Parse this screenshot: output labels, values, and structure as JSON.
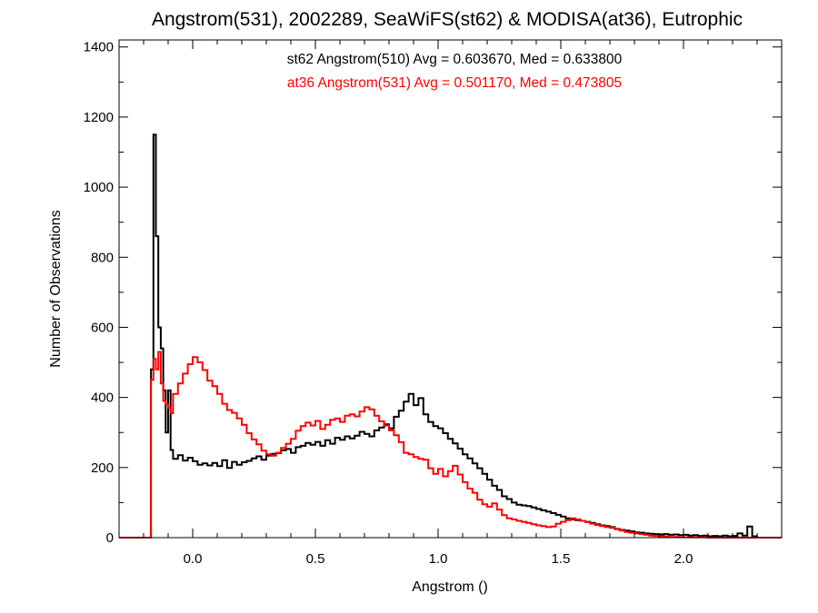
{
  "chart_data": {
    "type": "line",
    "title": "Angstrom(531), 2002289, SeaWiFS(st62) & MODISA(at36), Eutrophic",
    "xlabel": "Angstrom ()",
    "ylabel": "Number of Observations",
    "xlim": [
      -0.3,
      2.4
    ],
    "ylim": [
      0,
      1420
    ],
    "x_ticks": [
      0.0,
      0.5,
      1.0,
      1.5,
      2.0
    ],
    "x_tick_labels": [
      "0.0",
      "0.5",
      "1.0",
      "1.5",
      "2.0"
    ],
    "y_ticks": [
      0,
      200,
      400,
      600,
      800,
      1000,
      1200,
      1400
    ],
    "y_tick_labels": [
      "0",
      "200",
      "400",
      "600",
      "800",
      "1000",
      "1200",
      "1400"
    ],
    "grid": false,
    "series": [
      {
        "name": "st62 Angstrom(510)",
        "color": "#000000",
        "stats_text": "st62 Angstrom(510) Avg = 0.603670, Med = 0.633800",
        "points": [
          [
            -0.3,
            0
          ],
          [
            -0.18,
            0
          ],
          [
            -0.17,
            480
          ],
          [
            -0.16,
            1150
          ],
          [
            -0.15,
            860
          ],
          [
            -0.14,
            600
          ],
          [
            -0.13,
            540
          ],
          [
            -0.12,
            420
          ],
          [
            -0.11,
            300
          ],
          [
            -0.1,
            420
          ],
          [
            -0.09,
            250
          ],
          [
            -0.08,
            225
          ],
          [
            -0.06,
            235
          ],
          [
            -0.04,
            220
          ],
          [
            -0.02,
            228
          ],
          [
            0.0,
            218
          ],
          [
            0.02,
            208
          ],
          [
            0.04,
            212
          ],
          [
            0.06,
            206
          ],
          [
            0.08,
            213
          ],
          [
            0.1,
            204
          ],
          [
            0.12,
            221
          ],
          [
            0.14,
            199
          ],
          [
            0.16,
            216
          ],
          [
            0.18,
            208
          ],
          [
            0.2,
            215
          ],
          [
            0.22,
            219
          ],
          [
            0.24,
            226
          ],
          [
            0.26,
            232
          ],
          [
            0.28,
            222
          ],
          [
            0.3,
            234
          ],
          [
            0.32,
            239
          ],
          [
            0.34,
            241
          ],
          [
            0.36,
            249
          ],
          [
            0.38,
            253
          ],
          [
            0.4,
            242
          ],
          [
            0.42,
            258
          ],
          [
            0.44,
            262
          ],
          [
            0.46,
            270
          ],
          [
            0.48,
            265
          ],
          [
            0.5,
            273
          ],
          [
            0.52,
            262
          ],
          [
            0.54,
            278
          ],
          [
            0.56,
            268
          ],
          [
            0.58,
            285
          ],
          [
            0.6,
            279
          ],
          [
            0.62,
            289
          ],
          [
            0.64,
            283
          ],
          [
            0.66,
            291
          ],
          [
            0.68,
            302
          ],
          [
            0.7,
            296
          ],
          [
            0.72,
            289
          ],
          [
            0.74,
            306
          ],
          [
            0.76,
            314
          ],
          [
            0.78,
            323
          ],
          [
            0.8,
            312
          ],
          [
            0.82,
            345
          ],
          [
            0.84,
            362
          ],
          [
            0.86,
            388
          ],
          [
            0.88,
            410
          ],
          [
            0.9,
            378
          ],
          [
            0.92,
            398
          ],
          [
            0.94,
            352
          ],
          [
            0.96,
            330
          ],
          [
            0.98,
            318
          ],
          [
            1.0,
            312
          ],
          [
            1.02,
            298
          ],
          [
            1.04,
            282
          ],
          [
            1.06,
            269
          ],
          [
            1.08,
            254
          ],
          [
            1.1,
            238
          ],
          [
            1.12,
            226
          ],
          [
            1.14,
            212
          ],
          [
            1.16,
            198
          ],
          [
            1.18,
            182
          ],
          [
            1.2,
            165
          ],
          [
            1.22,
            148
          ],
          [
            1.24,
            136
          ],
          [
            1.26,
            118
          ],
          [
            1.28,
            110
          ],
          [
            1.3,
            100
          ],
          [
            1.32,
            94
          ],
          [
            1.34,
            92
          ],
          [
            1.36,
            90
          ],
          [
            1.38,
            86
          ],
          [
            1.4,
            82
          ],
          [
            1.42,
            78
          ],
          [
            1.44,
            74
          ],
          [
            1.46,
            70
          ],
          [
            1.48,
            65
          ],
          [
            1.5,
            60
          ],
          [
            1.52,
            55
          ],
          [
            1.54,
            52
          ],
          [
            1.56,
            50
          ],
          [
            1.58,
            48
          ],
          [
            1.6,
            45
          ],
          [
            1.62,
            42
          ],
          [
            1.64,
            38
          ],
          [
            1.66,
            35
          ],
          [
            1.68,
            33
          ],
          [
            1.7,
            30
          ],
          [
            1.72,
            25
          ],
          [
            1.74,
            22
          ],
          [
            1.76,
            20
          ],
          [
            1.78,
            18
          ],
          [
            1.8,
            15
          ],
          [
            1.82,
            14
          ],
          [
            1.84,
            12
          ],
          [
            1.86,
            11
          ],
          [
            1.88,
            10
          ],
          [
            1.9,
            9
          ],
          [
            1.92,
            10
          ],
          [
            1.94,
            8
          ],
          [
            1.96,
            9
          ],
          [
            1.98,
            7
          ],
          [
            2.0,
            8
          ],
          [
            2.02,
            6
          ],
          [
            2.04,
            7
          ],
          [
            2.06,
            5
          ],
          [
            2.08,
            6
          ],
          [
            2.1,
            4
          ],
          [
            2.12,
            5
          ],
          [
            2.14,
            4
          ],
          [
            2.16,
            6
          ],
          [
            2.18,
            4
          ],
          [
            2.2,
            5
          ],
          [
            2.22,
            12
          ],
          [
            2.24,
            6
          ],
          [
            2.26,
            32
          ],
          [
            2.28,
            4
          ],
          [
            2.3,
            0
          ],
          [
            2.4,
            0
          ]
        ]
      },
      {
        "name": "at36 Angstrom(531)",
        "color": "#ff0000",
        "stats_text": "at36 Angstrom(531) Avg = 0.501170, Med = 0.473805",
        "points": [
          [
            -0.3,
            0
          ],
          [
            -0.18,
            0
          ],
          [
            -0.17,
            450
          ],
          [
            -0.16,
            510
          ],
          [
            -0.15,
            480
          ],
          [
            -0.14,
            530
          ],
          [
            -0.13,
            440
          ],
          [
            -0.12,
            390
          ],
          [
            -0.11,
            380
          ],
          [
            -0.1,
            370
          ],
          [
            -0.09,
            355
          ],
          [
            -0.08,
            410
          ],
          [
            -0.06,
            440
          ],
          [
            -0.04,
            468
          ],
          [
            -0.02,
            495
          ],
          [
            0.0,
            515
          ],
          [
            0.02,
            500
          ],
          [
            0.04,
            478
          ],
          [
            0.06,
            448
          ],
          [
            0.08,
            432
          ],
          [
            0.1,
            410
          ],
          [
            0.12,
            382
          ],
          [
            0.14,
            364
          ],
          [
            0.16,
            356
          ],
          [
            0.18,
            340
          ],
          [
            0.2,
            322
          ],
          [
            0.22,
            298
          ],
          [
            0.24,
            280
          ],
          [
            0.26,
            266
          ],
          [
            0.28,
            248
          ],
          [
            0.3,
            238
          ],
          [
            0.32,
            234
          ],
          [
            0.34,
            242
          ],
          [
            0.36,
            256
          ],
          [
            0.38,
            268
          ],
          [
            0.4,
            282
          ],
          [
            0.42,
            305
          ],
          [
            0.44,
            318
          ],
          [
            0.46,
            328
          ],
          [
            0.48,
            320
          ],
          [
            0.5,
            333
          ],
          [
            0.52,
            310
          ],
          [
            0.54,
            322
          ],
          [
            0.56,
            336
          ],
          [
            0.58,
            340
          ],
          [
            0.6,
            330
          ],
          [
            0.62,
            348
          ],
          [
            0.64,
            352
          ],
          [
            0.66,
            346
          ],
          [
            0.68,
            360
          ],
          [
            0.7,
            372
          ],
          [
            0.72,
            366
          ],
          [
            0.74,
            348
          ],
          [
            0.76,
            332
          ],
          [
            0.78,
            320
          ],
          [
            0.8,
            306
          ],
          [
            0.82,
            292
          ],
          [
            0.84,
            272
          ],
          [
            0.86,
            242
          ],
          [
            0.88,
            238
          ],
          [
            0.9,
            230
          ],
          [
            0.92,
            225
          ],
          [
            0.94,
            222
          ],
          [
            0.96,
            198
          ],
          [
            0.98,
            182
          ],
          [
            1.0,
            196
          ],
          [
            1.02,
            175
          ],
          [
            1.04,
            190
          ],
          [
            1.06,
            205
          ],
          [
            1.08,
            180
          ],
          [
            1.1,
            158
          ],
          [
            1.12,
            140
          ],
          [
            1.14,
            128
          ],
          [
            1.16,
            108
          ],
          [
            1.18,
            95
          ],
          [
            1.2,
            88
          ],
          [
            1.22,
            98
          ],
          [
            1.24,
            80
          ],
          [
            1.26,
            64
          ],
          [
            1.28,
            55
          ],
          [
            1.3,
            52
          ],
          [
            1.32,
            48
          ],
          [
            1.34,
            45
          ],
          [
            1.36,
            42
          ],
          [
            1.38,
            38
          ],
          [
            1.4,
            35
          ],
          [
            1.42,
            33
          ],
          [
            1.44,
            30
          ],
          [
            1.46,
            32
          ],
          [
            1.48,
            40
          ],
          [
            1.5,
            45
          ],
          [
            1.52,
            50
          ],
          [
            1.54,
            55
          ],
          [
            1.56,
            52
          ],
          [
            1.58,
            48
          ],
          [
            1.6,
            44
          ],
          [
            1.62,
            40
          ],
          [
            1.64,
            36
          ],
          [
            1.66,
            33
          ],
          [
            1.68,
            30
          ],
          [
            1.7,
            28
          ],
          [
            1.72,
            24
          ],
          [
            1.74,
            20
          ],
          [
            1.76,
            16
          ],
          [
            1.78,
            14
          ],
          [
            1.8,
            12
          ],
          [
            1.82,
            10
          ],
          [
            1.84,
            8
          ],
          [
            1.86,
            6
          ],
          [
            1.88,
            5
          ],
          [
            1.9,
            4
          ],
          [
            1.92,
            3
          ],
          [
            1.94,
            2
          ],
          [
            1.96,
            2
          ],
          [
            1.98,
            1
          ],
          [
            2.0,
            1
          ],
          [
            2.1,
            0
          ],
          [
            2.4,
            0
          ]
        ]
      }
    ]
  }
}
